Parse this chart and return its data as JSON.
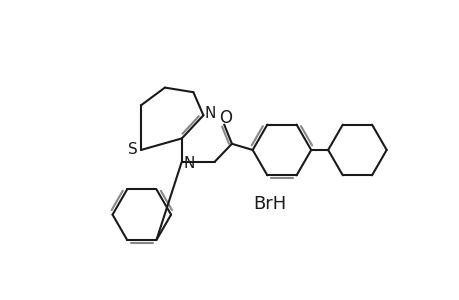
{
  "bg_color": "#ffffff",
  "line_color": "#1a1a1a",
  "gray_color": "#888888",
  "BrH_text": "BrH",
  "N_label": "N",
  "S_label": "S",
  "O_label": "O",
  "figsize": [
    4.6,
    3.0
  ],
  "dpi": 100
}
